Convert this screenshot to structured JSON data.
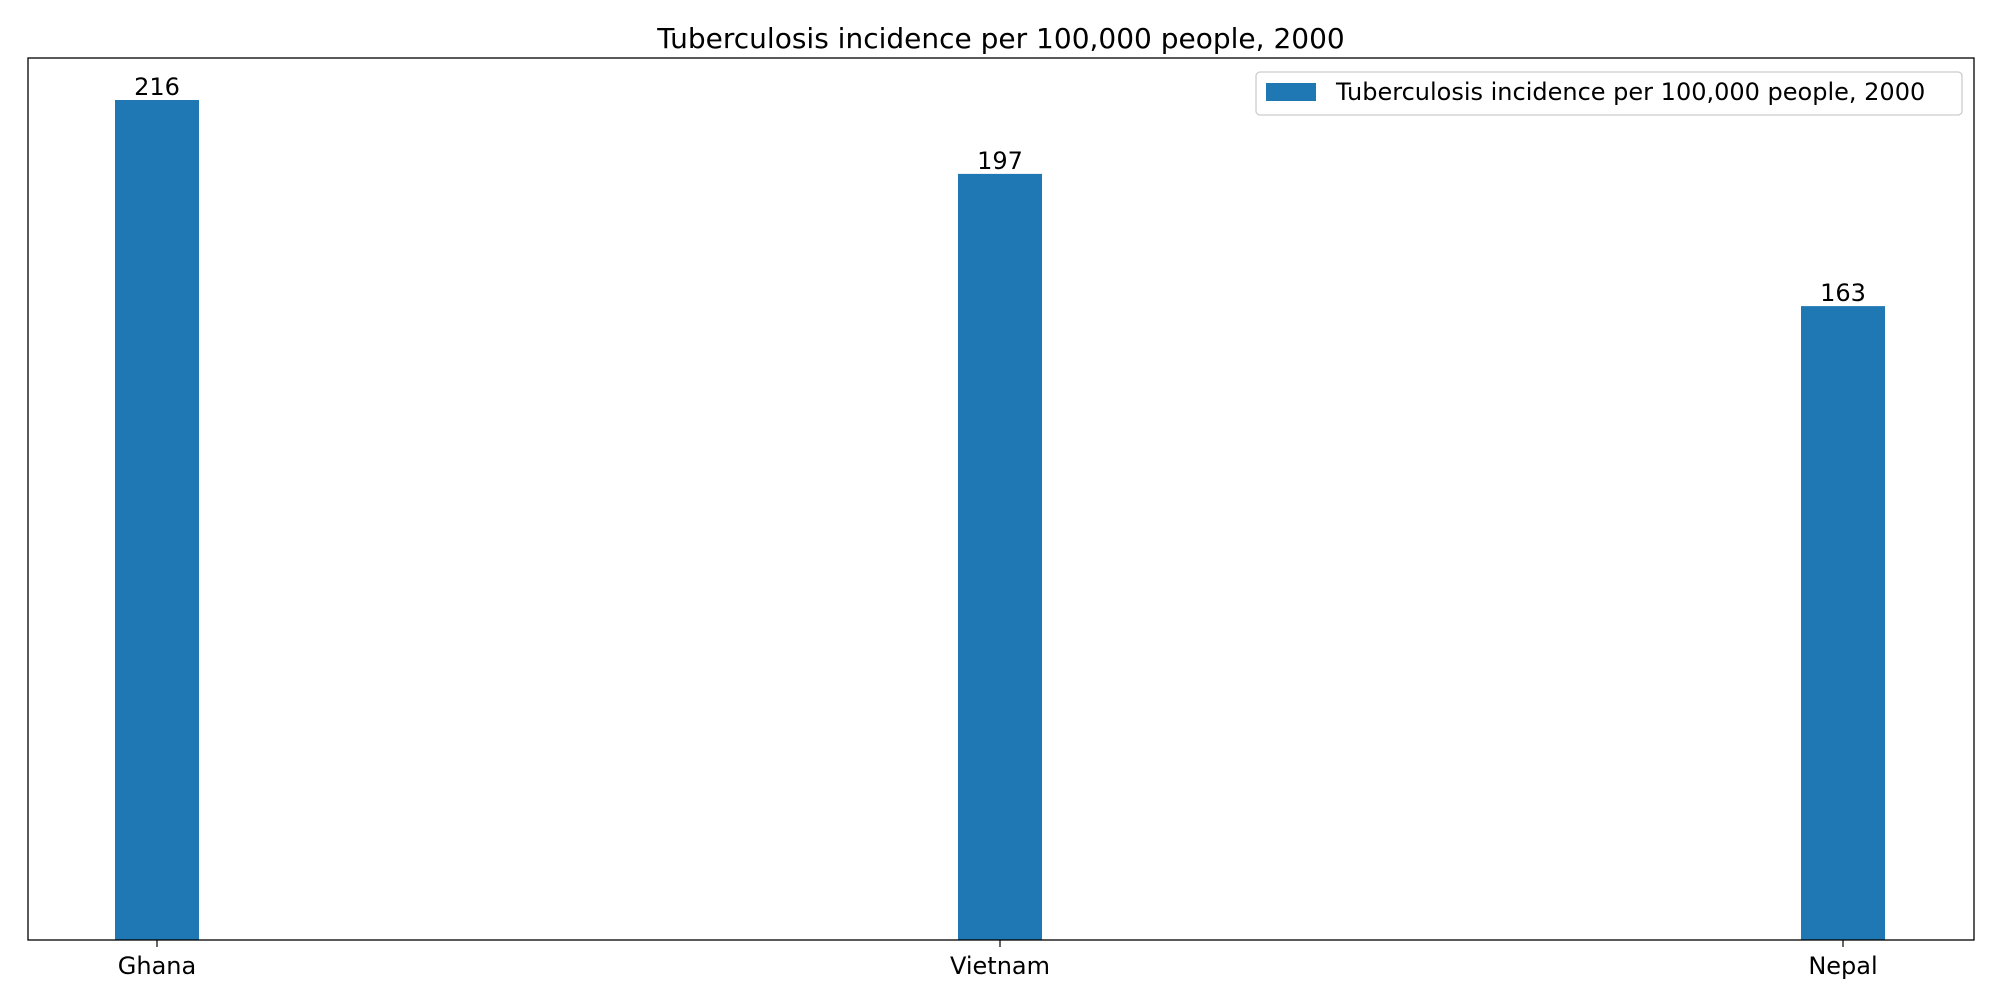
{
  "chart_data": {
    "type": "bar",
    "title": "Tuberculosis incidence per 100,000 people, 2000",
    "xlabel": "",
    "ylabel": "",
    "categories": [
      "Ghana",
      "Vietnam",
      "Nepal"
    ],
    "series": [
      {
        "name": "Tuberculosis incidence per 100,000 people, 2000",
        "values": [
          216,
          197,
          163
        ],
        "data_labels": [
          "216",
          "197",
          "163"
        ]
      }
    ],
    "ylim": [
      0,
      226.8
    ],
    "y_ticks_visible": false,
    "grid": false,
    "legend": {
      "position": "upper-right"
    },
    "colors": {
      "bar": "#1f77b4",
      "frame": "#000000",
      "legend_border": "#cccccc"
    }
  }
}
